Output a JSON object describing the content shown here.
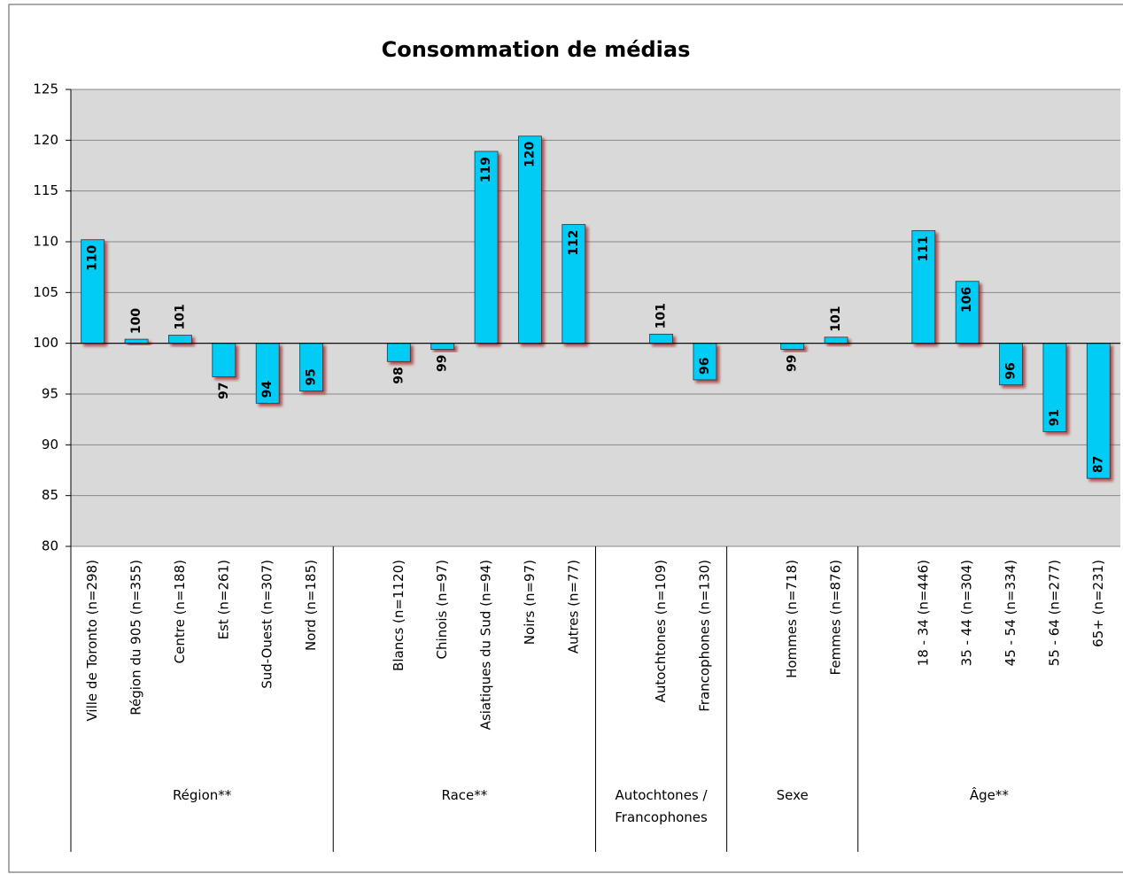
{
  "chart_data": {
    "type": "bar",
    "title": "Consommation de médias",
    "categories": [
      "Ville de Toronto (n=298)",
      "Région du 905 (n=355)",
      "Centre (n=188)",
      "Est (n=261)",
      "Sud-Ouest (n=307)",
      "Nord (n=185)",
      null,
      "Blancs (n=1120)",
      "Chinois (n=97)",
      "Asiatiques du Sud (n=94)",
      "Noirs (n=97)",
      "Autres (n=77)",
      null,
      "Autochtones (n=109)",
      "Francophones (n=130)",
      null,
      "Hommes (n=718)",
      "Femmes (n=876)",
      null,
      "18 - 34 (n=446)",
      "35 - 44 (n=304)",
      "45 - 54 (n=334)",
      "55 - 64 (n=277)",
      "65+ (n=231)"
    ],
    "values": [
      110.2,
      100.4,
      100.8,
      96.7,
      94.1,
      95.3,
      null,
      98.2,
      99.4,
      118.9,
      120.4,
      111.7,
      null,
      100.9,
      96.4,
      null,
      99.4,
      100.6,
      null,
      111.1,
      106.1,
      95.9,
      91.3,
      86.7
    ],
    "value_labels": [
      "110",
      "100",
      "101",
      "97",
      "94",
      "95",
      null,
      "98",
      "99",
      "119",
      "120",
      "112",
      null,
      "101",
      "96",
      null,
      "99",
      "101",
      null,
      "111",
      "106",
      "96",
      "91",
      "87"
    ],
    "groups": [
      "Région**",
      "Race**",
      "Autochtones / Francophones",
      "Sexe",
      "Âge**"
    ],
    "color": "#00ccf5",
    "x_axis_crosses": 100,
    "ylim": [
      80,
      125
    ],
    "yticks": [
      80,
      85,
      90,
      95,
      100,
      105,
      110,
      115,
      120,
      125
    ],
    "grid": true
  }
}
